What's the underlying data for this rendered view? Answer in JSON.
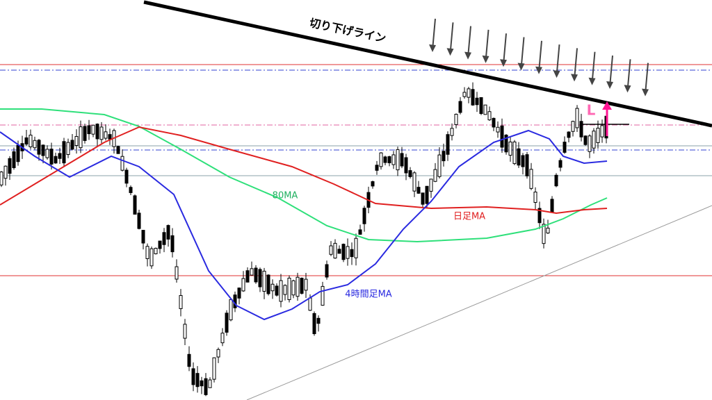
{
  "annotations": {
    "trendline": "切り下げライン",
    "ma80": "80MA",
    "daily_ma": "日足MA",
    "h4_ma": "4時間足MA",
    "entry": "L"
  }
}
